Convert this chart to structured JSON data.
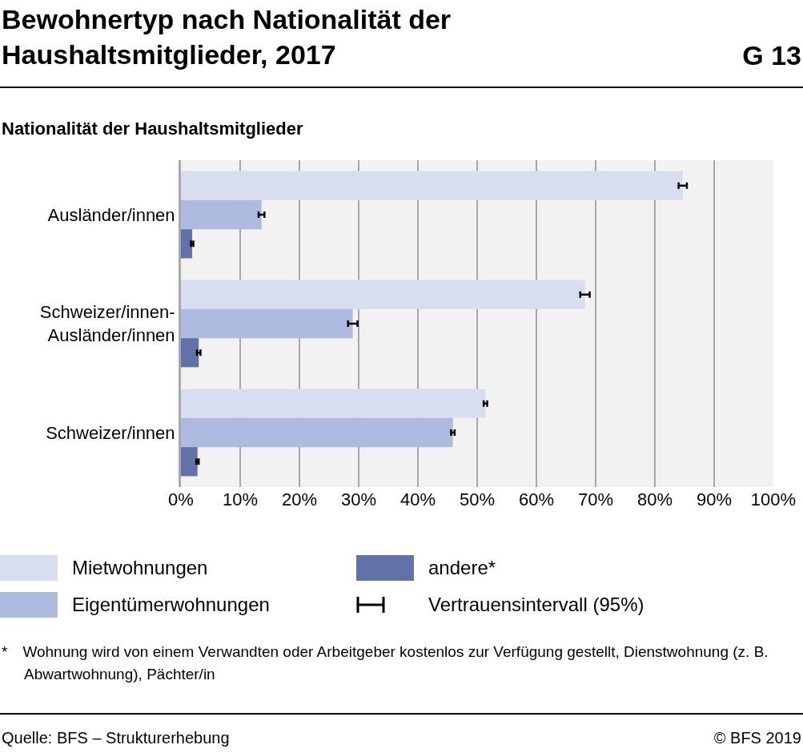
{
  "chart_data": {
    "type": "bar",
    "orientation": "horizontal",
    "title": "Bewohnertyp nach Nationalität der Haushaltsmitglieder, 2017",
    "ylabel": "Nationalität der Haushaltsmitglieder",
    "categories": [
      "Ausländer/innen",
      "Schweizer/innen-Ausländer/innen",
      "Schweizer/innen"
    ],
    "series": [
      {
        "name": "Mietwohnungen",
        "color": "#d8ddf0",
        "values": [
          84.7,
          68.2,
          51.4
        ],
        "errors": [
          0.7,
          0.8,
          0.3
        ]
      },
      {
        "name": "Eigentümerwohnungen",
        "color": "#adbbe0",
        "values": [
          13.6,
          29.0,
          45.9
        ],
        "errors": [
          0.5,
          0.8,
          0.3
        ]
      },
      {
        "name": "andere*",
        "color": "#6272a8",
        "values": [
          1.9,
          3.0,
          2.8
        ],
        "errors": [
          0.2,
          0.3,
          0.2
        ]
      }
    ],
    "xlim": [
      0,
      100
    ],
    "xticks": [
      {
        "value": 0,
        "label": "0%"
      },
      {
        "value": 10,
        "label": "10%"
      },
      {
        "value": 20,
        "label": "20%"
      },
      {
        "value": 30,
        "label": "30%"
      },
      {
        "value": 40,
        "label": "40%"
      },
      {
        "value": 50,
        "label": "50%"
      },
      {
        "value": 60,
        "label": "60%"
      },
      {
        "value": 70,
        "label": "70%"
      },
      {
        "value": 80,
        "label": "80%"
      },
      {
        "value": 90,
        "label": "90%"
      },
      {
        "value": 100,
        "label": "100%"
      }
    ],
    "grid": "x",
    "legend": "bottom",
    "annotations": [
      "G 13",
      "Vertrauensintervall (95%)",
      "* Wohnung wird von einem Verwandten oder Arbeitgeber kostenlos zur Verfügung gestellt, Dienstwohnung (z. B. Abwartwohnung), Pächter/in",
      "Quelle: BFS – Strukturerhebung",
      "© BFS 2019"
    ]
  }
}
